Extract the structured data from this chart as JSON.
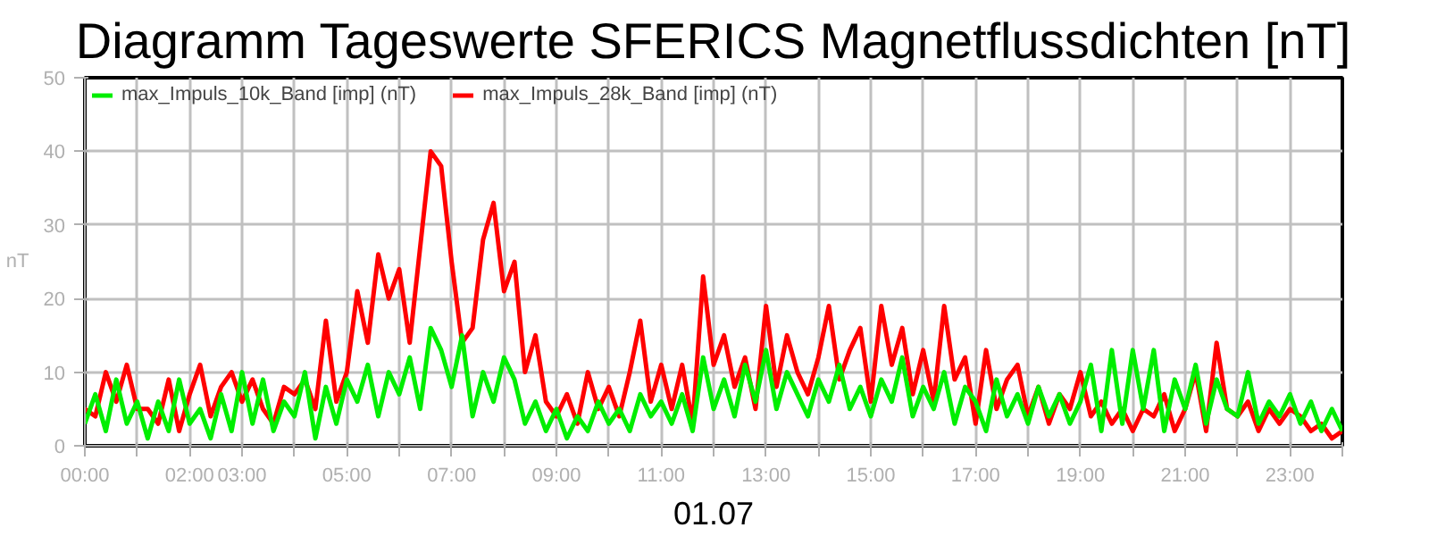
{
  "chart_data": {
    "type": "line",
    "title": "Diagramm Tageswerte SFERICS Magnetflussdichten [nT]",
    "xlabel": "01.07",
    "ylabel": "nT",
    "x": [
      0,
      0.2,
      0.4,
      0.6,
      0.8,
      1,
      1.2,
      1.4,
      1.6,
      1.8,
      2,
      2.2,
      2.4,
      2.6,
      2.8,
      3,
      3.2,
      3.4,
      3.6,
      3.8,
      4,
      4.2,
      4.4,
      4.6,
      4.8,
      5,
      5.2,
      5.4,
      5.6,
      5.8,
      6,
      6.2,
      6.4,
      6.6,
      6.8,
      7,
      7.2,
      7.4,
      7.6,
      7.8,
      8,
      8.2,
      8.4,
      8.6,
      8.8,
      9,
      9.2,
      9.4,
      9.6,
      9.8,
      10,
      10.2,
      10.4,
      10.6,
      10.8,
      11,
      11.2,
      11.4,
      11.6,
      11.8,
      12,
      12.2,
      12.4,
      12.6,
      12.8,
      13,
      13.2,
      13.4,
      13.6,
      13.8,
      14,
      14.2,
      14.4,
      14.6,
      14.8,
      15,
      15.2,
      15.4,
      15.6,
      15.8,
      16,
      16.2,
      16.4,
      16.6,
      16.8,
      17,
      17.2,
      17.4,
      17.6,
      17.8,
      18,
      18.2,
      18.4,
      18.6,
      18.8,
      19,
      19.2,
      19.4,
      19.6,
      19.8,
      20,
      20.2,
      20.4,
      20.6,
      20.8,
      21,
      21.2,
      21.4,
      21.6,
      21.8,
      22,
      22.2,
      22.4,
      22.6,
      22.8,
      23,
      23.2,
      23.4,
      23.6,
      23.8,
      24
    ],
    "series": [
      {
        "name": "max_Impuls_28k_Band [imp] (nT)",
        "color": "#ff0000",
        "values": [
          5,
          4,
          10,
          6,
          11,
          5,
          5,
          3,
          9,
          2,
          7,
          11,
          4,
          8,
          10,
          6,
          9,
          5,
          3,
          8,
          7,
          9,
          5,
          17,
          6,
          10,
          21,
          14,
          26,
          20,
          24,
          14,
          27,
          40,
          38,
          25,
          14,
          16,
          28,
          33,
          21,
          25,
          10,
          15,
          6,
          4,
          7,
          3,
          10,
          5,
          8,
          4,
          10,
          17,
          6,
          11,
          5,
          11,
          3,
          23,
          11,
          15,
          8,
          12,
          5,
          19,
          8,
          15,
          10,
          7,
          12,
          19,
          9,
          13,
          16,
          6,
          19,
          11,
          16,
          7,
          13,
          6,
          19,
          9,
          12,
          3,
          13,
          5,
          9,
          11,
          4,
          8,
          3,
          7,
          5,
          10,
          4,
          6,
          3,
          5,
          2,
          5,
          4,
          7,
          2,
          5,
          10,
          2,
          14,
          5,
          4,
          6,
          2,
          5,
          3,
          5,
          4,
          2,
          3,
          1,
          2
        ]
      },
      {
        "name": "max_Impuls_10k_Band [imp] (nT)",
        "color": "#00ee00",
        "values": [
          3,
          7,
          2,
          9,
          3,
          6,
          1,
          6,
          2,
          9,
          3,
          5,
          1,
          7,
          2,
          10,
          3,
          9,
          2,
          6,
          4,
          10,
          1,
          8,
          3,
          9,
          6,
          11,
          4,
          10,
          7,
          12,
          5,
          16,
          13,
          8,
          15,
          4,
          10,
          6,
          12,
          9,
          3,
          6,
          2,
          5,
          1,
          4,
          2,
          6,
          3,
          5,
          2,
          7,
          4,
          6,
          3,
          7,
          2,
          12,
          5,
          9,
          4,
          11,
          6,
          13,
          5,
          10,
          7,
          4,
          9,
          6,
          11,
          5,
          8,
          4,
          9,
          6,
          12,
          4,
          8,
          5,
          10,
          3,
          8,
          6,
          2,
          9,
          4,
          7,
          3,
          8,
          4,
          7,
          3,
          6,
          11,
          2,
          13,
          3,
          13,
          5,
          13,
          2,
          9,
          5,
          11,
          3,
          9,
          5,
          4,
          10,
          3,
          6,
          4,
          7,
          3,
          6,
          2,
          5,
          2
        ]
      }
    ],
    "xlim": [
      0,
      24
    ],
    "ylim": [
      0,
      50
    ],
    "xticks": [
      {
        "value": 0,
        "label": "00:00"
      },
      {
        "value": 1,
        "label": null
      },
      {
        "value": 2,
        "label": "02:00"
      },
      {
        "value": 3,
        "label": "03:00"
      },
      {
        "value": 4,
        "label": null
      },
      {
        "value": 5,
        "label": "05:00"
      },
      {
        "value": 6,
        "label": null
      },
      {
        "value": 7,
        "label": "07:00"
      },
      {
        "value": 8,
        "label": null
      },
      {
        "value": 9,
        "label": "09:00"
      },
      {
        "value": 10,
        "label": null
      },
      {
        "value": 11,
        "label": "11:00"
      },
      {
        "value": 12,
        "label": null
      },
      {
        "value": 13,
        "label": "13:00"
      },
      {
        "value": 14,
        "label": null
      },
      {
        "value": 15,
        "label": "15:00"
      },
      {
        "value": 16,
        "label": null
      },
      {
        "value": 17,
        "label": "17:00"
      },
      {
        "value": 18,
        "label": null
      },
      {
        "value": 19,
        "label": "19:00"
      },
      {
        "value": 20,
        "label": null
      },
      {
        "value": 21,
        "label": "21:00"
      },
      {
        "value": 22,
        "label": null
      },
      {
        "value": 23,
        "label": "23:00"
      },
      {
        "value": 24,
        "label": null
      }
    ],
    "yticks": [
      0,
      10,
      20,
      30,
      40,
      50
    ],
    "grid": true,
    "legend": "top left",
    "marker": "none",
    "line_style": "solid"
  }
}
